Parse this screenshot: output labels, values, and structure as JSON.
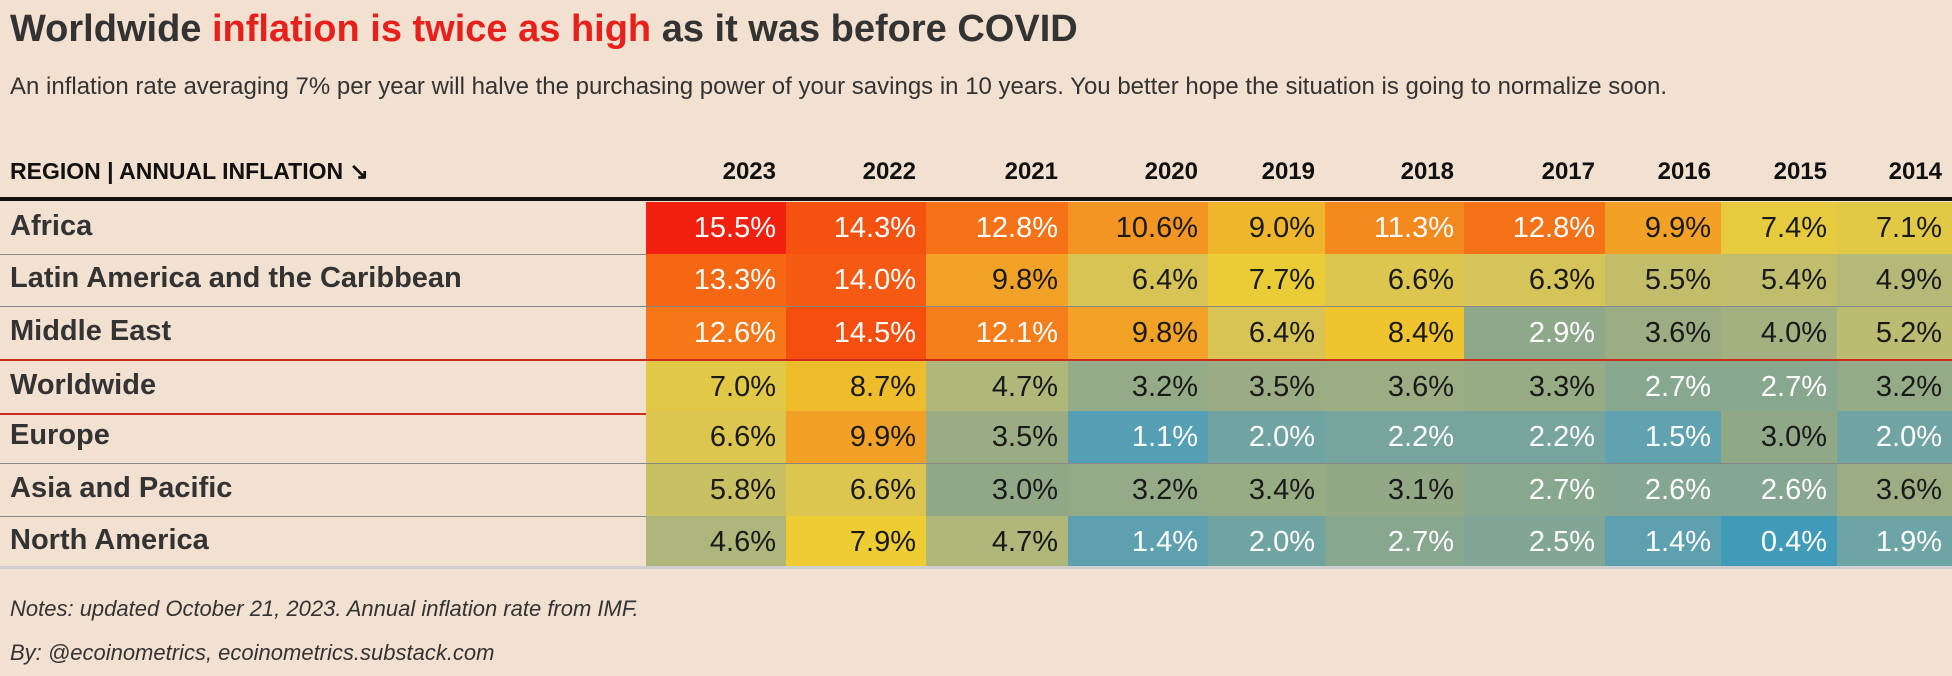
{
  "title": {
    "part1": "Worldwide ",
    "highlight": "inflation is twice as high",
    "part2": " as it was before COVID"
  },
  "subtitle": "An inflation rate averaging 7% per year will halve the purchasing power of your savings in 10 years. You better hope the situation is going to normalize soon.",
  "colors": {
    "background": "#f2e0d0",
    "highlight": "#e8201c",
    "worldwide_border": "#cc2a1a",
    "header_rule": "#111111"
  },
  "chart_data": {
    "type": "table",
    "column_header": "REGION | ANNUAL INFLATION ↘",
    "years": [
      "2023",
      "2022",
      "2021",
      "2020",
      "2019",
      "2018",
      "2017",
      "2016",
      "2015",
      "2014"
    ],
    "highlighted_row": "Worldwide",
    "rows": [
      {
        "region": "Africa",
        "values": [
          "15.5%",
          "14.3%",
          "12.8%",
          "10.6%",
          "9.0%",
          "11.3%",
          "12.8%",
          "9.9%",
          "7.4%",
          "7.1%"
        ]
      },
      {
        "region": "Latin America and the Caribbean",
        "values": [
          "13.3%",
          "14.0%",
          "9.8%",
          "6.4%",
          "7.7%",
          "6.6%",
          "6.3%",
          "5.5%",
          "5.4%",
          "4.9%"
        ]
      },
      {
        "region": "Middle East",
        "values": [
          "12.6%",
          "14.5%",
          "12.1%",
          "9.8%",
          "6.4%",
          "8.4%",
          "2.9%",
          "3.6%",
          "4.0%",
          "5.2%"
        ]
      },
      {
        "region": "Worldwide",
        "values": [
          "7.0%",
          "8.7%",
          "4.7%",
          "3.2%",
          "3.5%",
          "3.6%",
          "3.3%",
          "2.7%",
          "2.7%",
          "3.2%"
        ]
      },
      {
        "region": "Europe",
        "values": [
          "6.6%",
          "9.9%",
          "3.5%",
          "1.1%",
          "2.0%",
          "2.2%",
          "2.2%",
          "1.5%",
          "3.0%",
          "2.0%"
        ]
      },
      {
        "region": "Asia and Pacific",
        "values": [
          "5.8%",
          "6.6%",
          "3.0%",
          "3.2%",
          "3.4%",
          "3.1%",
          "2.7%",
          "2.6%",
          "2.6%",
          "3.6%"
        ]
      },
      {
        "region": "North America",
        "values": [
          "4.6%",
          "7.9%",
          "4.7%",
          "1.4%",
          "2.0%",
          "2.7%",
          "2.5%",
          "1.4%",
          "0.4%",
          "1.9%"
        ]
      }
    ]
  },
  "footer": {
    "notes": "Notes: updated October 21, 2023. Annual inflation rate from IMF.",
    "byline": "By: @ecoinometrics, ecoinometrics.substack.com"
  }
}
